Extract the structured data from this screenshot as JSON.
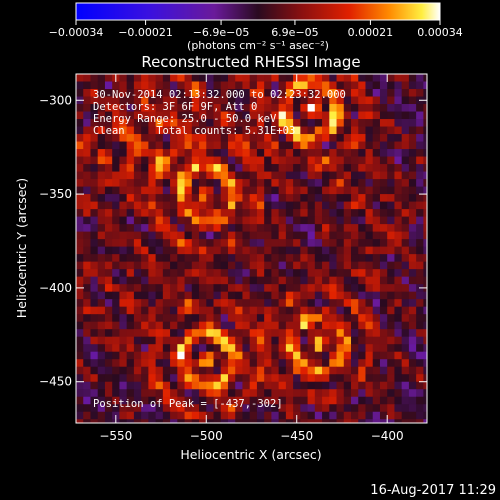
{
  "chart_data": {
    "type": "heatmap",
    "title": "Reconstructed RHESSI Image",
    "xlabel": "Heliocentric X (arcsec)",
    "ylabel": "Heliocentric Y (arcsec)",
    "xlim": [
      -572,
      -378
    ],
    "ylim": [
      -472,
      -286
    ],
    "x_ticks": [
      {
        "value": -550,
        "label": "−550"
      },
      {
        "value": -500,
        "label": "−500"
      },
      {
        "value": -450,
        "label": "−450"
      },
      {
        "value": -400,
        "label": "−400"
      }
    ],
    "y_ticks": [
      {
        "value": -300,
        "label": "−300"
      },
      {
        "value": -350,
        "label": "−350"
      },
      {
        "value": -400,
        "label": "−400"
      },
      {
        "value": -450,
        "label": "−450"
      }
    ],
    "colorbar": {
      "min": -0.00034,
      "max": 0.00034,
      "unit_label": "(photons cm⁻² s⁻¹ asec⁻²)",
      "ticks": [
        {
          "value": -0.00034,
          "label": "−0.00034"
        },
        {
          "value": -0.00021,
          "label": "−0.00021"
        },
        {
          "value": -6.9e-05,
          "label": "−6.9e−05"
        },
        {
          "value": 6.9e-05,
          "label": "6.9e−05"
        },
        {
          "value": 0.00021,
          "label": "0.00021"
        },
        {
          "value": 0.00034,
          "label": "0.00034"
        }
      ]
    },
    "annotations": {
      "time_range": "30-Nov-2014 02:13:32.000 to 02:23:32.000",
      "detectors": "Detectors: 3F 6F 9F, Att 0",
      "energy_range": "Energy Range: 25.0 - 50.0 keV",
      "algorithm": "Clean     Total counts: 5.31E+03",
      "peak": "Position of Peak = [-437,-302]"
    },
    "peak_position": [
      -437,
      -302
    ],
    "sources": [
      {
        "x": -442,
        "y": -305,
        "value": 0.00034
      },
      {
        "x": -500,
        "y": -350,
        "value": 0.0003
      },
      {
        "x": -500,
        "y": -438,
        "value": 0.0003
      },
      {
        "x": -438,
        "y": -430,
        "value": 0.00029
      },
      {
        "x": -555,
        "y": -330,
        "value": 0.00016
      },
      {
        "x": -520,
        "y": -300,
        "value": 0.00014
      },
      {
        "x": -405,
        "y": -365,
        "value": 0.00013
      },
      {
        "x": -555,
        "y": -400,
        "value": 0.00012
      }
    ]
  },
  "footer": {
    "date": "16-Aug-2017 11:29"
  }
}
